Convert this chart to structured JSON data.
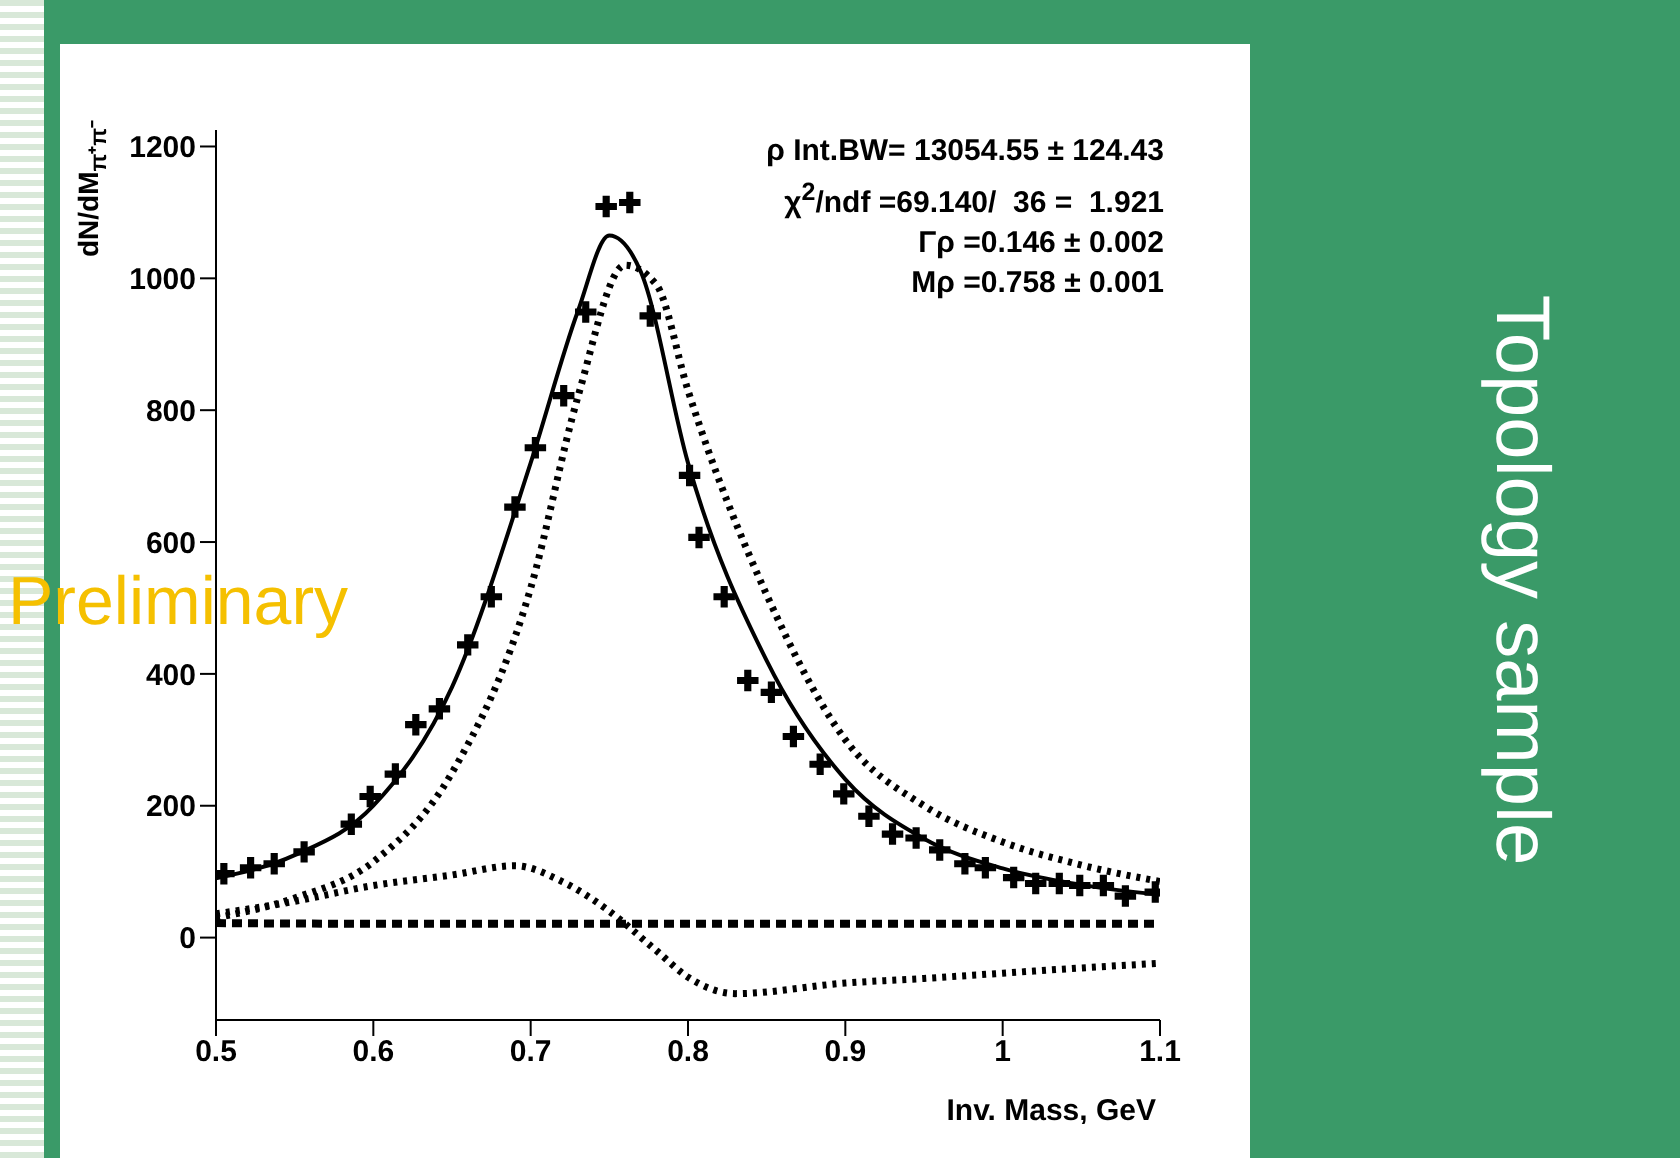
{
  "chart_data": {
    "type": "line",
    "xlabel": "Inv. Mass, GeV",
    "ylabel": "dN/dM$_{π⁺π⁻}$",
    "xlim": [
      0.5,
      1.1
    ],
    "xticks": [
      0.5,
      0.6,
      0.7,
      0.8,
      0.9,
      1,
      1.1
    ],
    "ylim": [
      -125,
      1225
    ],
    "yticks": [
      0,
      200,
      400,
      600,
      800,
      1000,
      1200
    ],
    "annotations": [
      "ρ Int.BW= 13054.55 ± 124.43",
      "χ$^{2}$/ndf =69.140/  36 =  1.921",
      "Γρ =0.146 ± 0.002",
      "Mρ =0.758 ± 0.001",
      "Preliminary",
      "Topology sample"
    ],
    "series": [
      {
        "type": "scatter",
        "color": "#000000",
        "marker": "cross",
        "x": [
          0.505,
          0.522,
          0.537,
          0.556,
          0.586,
          0.598,
          0.614,
          0.627,
          0.642,
          0.66,
          0.675,
          0.69,
          0.703,
          0.721,
          0.735,
          0.748,
          0.763,
          0.776,
          0.801,
          0.807,
          0.823,
          0.838,
          0.853,
          0.867,
          0.884,
          0.899,
          0.915,
          0.93,
          0.945,
          0.96,
          0.976,
          0.989,
          1.007,
          1.021,
          1.036,
          1.049,
          1.064,
          1.078,
          1.097
        ],
        "values": [
          97,
          106,
          112,
          130,
          172,
          214,
          248,
          323,
          347,
          444,
          517,
          653,
          743,
          822,
          949,
          1109,
          1115,
          943,
          701,
          607,
          517,
          390,
          372,
          305,
          263,
          218,
          184,
          157,
          151,
          133,
          112,
          106,
          91,
          82,
          82,
          79,
          79,
          63,
          69
        ]
      },
      {
        "color": "#000000",
        "line_style": "solid",
        "x": [
          0.5,
          0.55,
          0.6,
          0.65,
          0.7,
          0.73,
          0.75,
          0.77,
          0.8,
          0.85,
          0.9,
          0.95,
          1.0,
          1.05,
          1.1
        ],
        "values": [
          90,
          125,
          200,
          380,
          720,
          950,
          1065,
          1010,
          720,
          420,
          240,
          150,
          105,
          80,
          65
        ]
      },
      {
        "color": "#000000",
        "line_style": "dotted",
        "x": [
          0.5,
          0.55,
          0.6,
          0.65,
          0.7,
          0.73,
          0.76,
          0.78,
          0.8,
          0.85,
          0.9,
          0.95,
          1.0,
          1.05,
          1.1
        ],
        "values": [
          30,
          60,
          115,
          250,
          530,
          820,
          1020,
          990,
          830,
          520,
          300,
          200,
          145,
          110,
          85
        ]
      },
      {
        "color": "#000000",
        "line_style": "dotted",
        "x": [
          0.5,
          0.55,
          0.6,
          0.65,
          0.69,
          0.72,
          0.75,
          0.78,
          0.8,
          0.83,
          0.9,
          0.95,
          1.0,
          1.05,
          1.1
        ],
        "values": [
          36,
          55,
          79,
          95,
          109,
          85,
          40,
          -20,
          -60,
          -85,
          -69,
          -62,
          -54,
          -46,
          -39
        ]
      },
      {
        "color": "#000000",
        "line_style": "dashed",
        "x": [
          0.5,
          0.6,
          0.7,
          0.8,
          0.9,
          1.0,
          1.1
        ],
        "values": [
          22,
          21,
          21,
          21,
          21,
          21,
          21
        ]
      }
    ]
  }
}
